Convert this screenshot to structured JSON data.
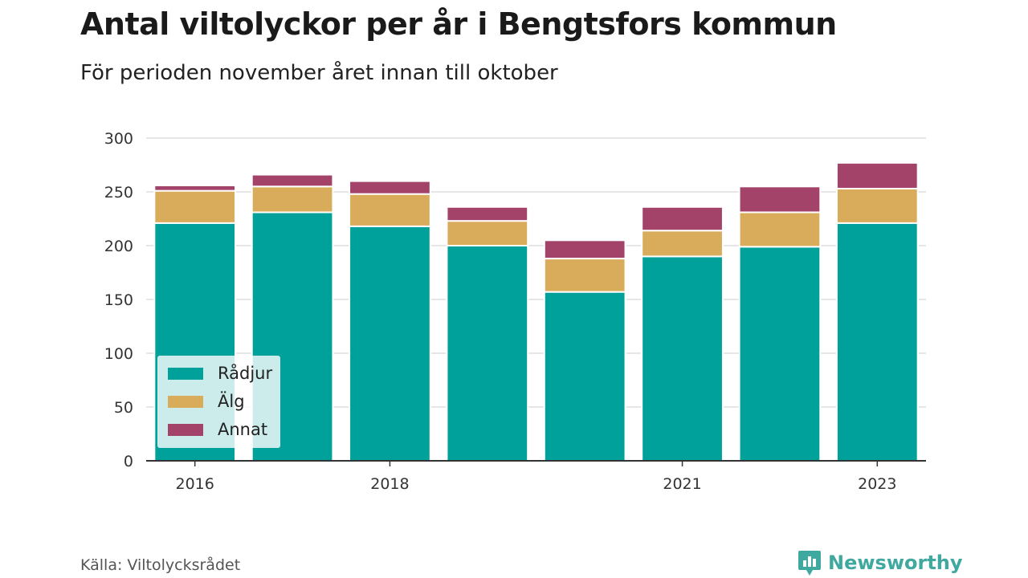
{
  "header": {
    "title": "Antal viltolyckor per år i Bengtsfors kommun",
    "subtitle": "För perioden november året innan till oktober"
  },
  "footer": {
    "source": "Källa: Viltolycksrådet",
    "brand": "Newsworthy"
  },
  "chart_data": {
    "type": "bar",
    "stacked": true,
    "title": "Antal viltolyckor per år i Bengtsfors kommun",
    "subtitle": "För perioden november året innan till oktober",
    "categories": [
      "2016",
      "2017",
      "2018",
      "2019",
      "2020",
      "2021",
      "2022",
      "2023"
    ],
    "x_tick_labels": [
      "2016",
      "",
      "2018",
      "",
      "",
      "2021",
      "",
      "2023"
    ],
    "series": [
      {
        "name": "Rådjur",
        "color": "#00a19a",
        "values": [
          221,
          231,
          218,
          200,
          157,
          190,
          199,
          221
        ]
      },
      {
        "name": "Älg",
        "color": "#d8ac5a",
        "values": [
          30,
          24,
          30,
          23,
          31,
          24,
          32,
          32
        ]
      },
      {
        "name": "Annat",
        "color": "#a3436a",
        "values": [
          5,
          11,
          12,
          13,
          17,
          22,
          24,
          24
        ]
      }
    ],
    "ylim": [
      0,
      300
    ],
    "yticks": [
      0,
      50,
      100,
      150,
      200,
      250,
      300
    ],
    "xlabel": "",
    "ylabel": "",
    "grid": true,
    "legend": {
      "position": "bottom-left",
      "entries": [
        "Rådjur",
        "Älg",
        "Annat"
      ]
    }
  }
}
